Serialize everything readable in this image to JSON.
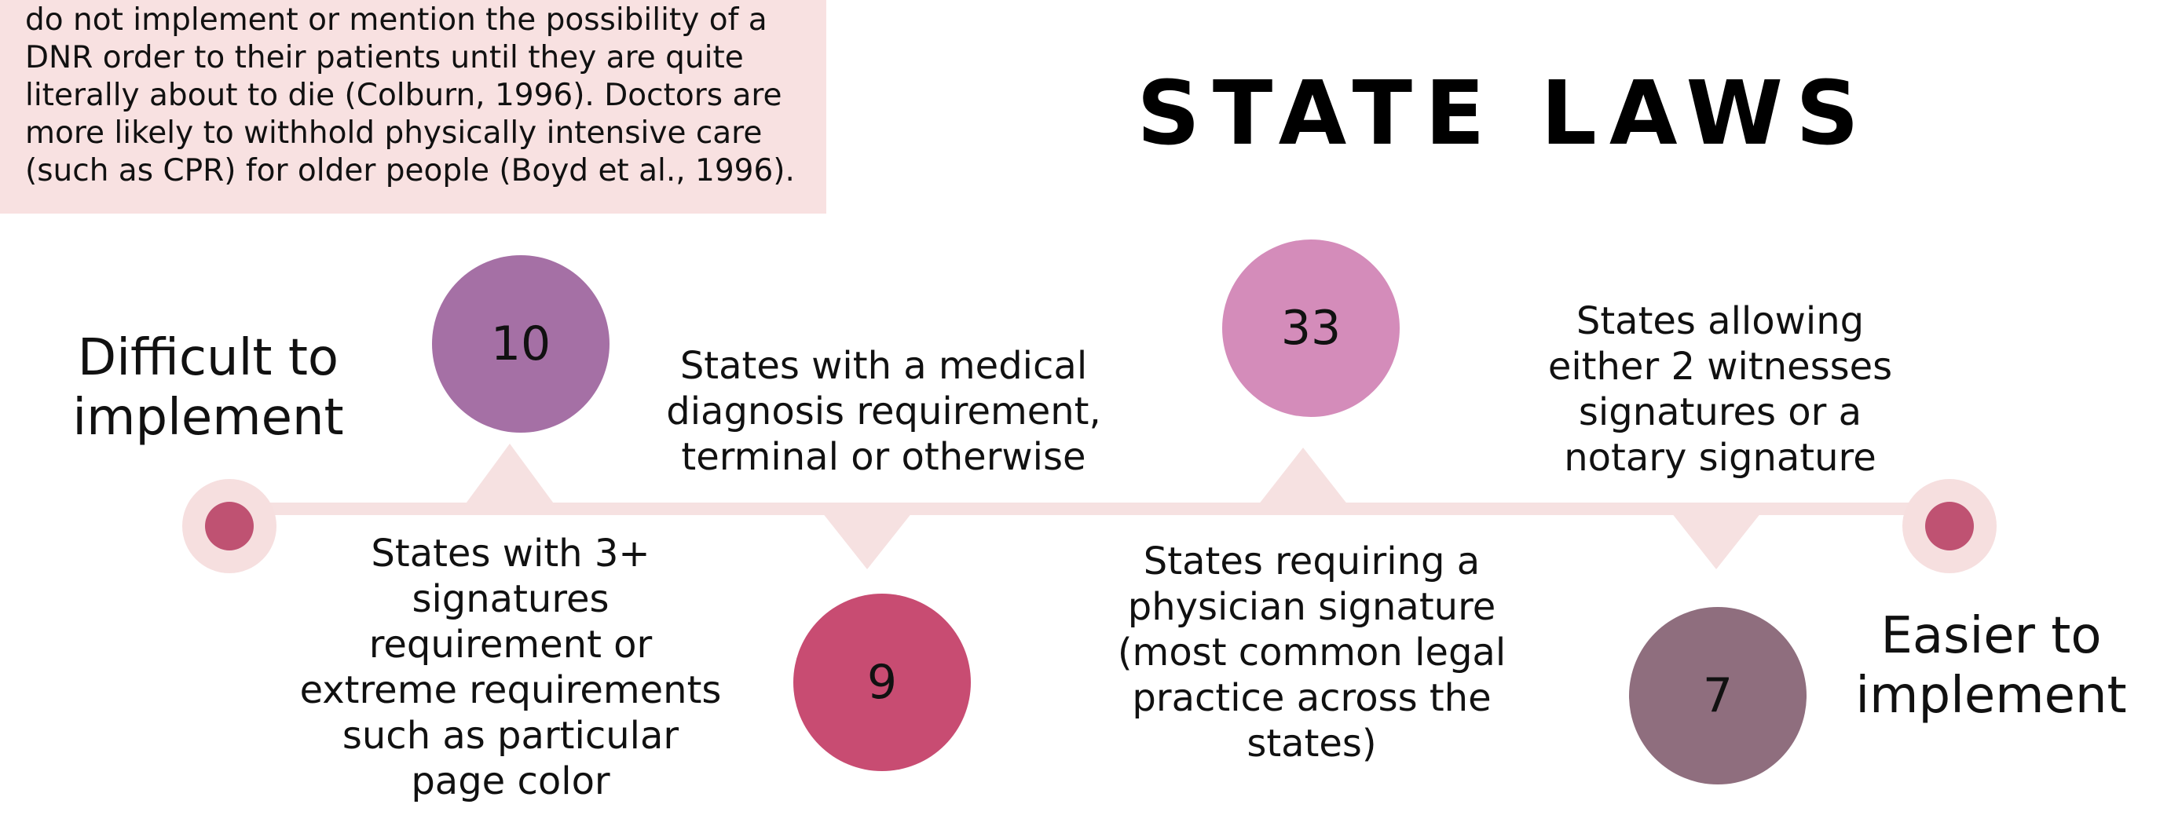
{
  "intro": {
    "text": "do not implement or mention the possibility of a\nDNR order to their patients until they are quite\nliterally about to die (Colburn, 1996). Doctors are\nmore likely to withhold physically intensive care\n(such as CPR) for older people (Boyd et al., 1996)."
  },
  "title": "STATE LAWS",
  "timeline": {
    "start_label": "Difficult to\nimplement",
    "end_label": "Easier to\nimplement",
    "items": [
      {
        "count": "10",
        "description": "States with 3+\nsignatures\nrequirement or\nextreme requirements\nsuch as particular\npage color",
        "color": "#a570a5"
      },
      {
        "count": "9",
        "description": "States with a medical\ndiagnosis requirement,\nterminal or otherwise",
        "color": "#c84c72"
      },
      {
        "count": "33",
        "description": "States requiring a\nphysician signature\n(most common legal\npractice across the\nstates)",
        "color": "#d48cba"
      },
      {
        "count": "7",
        "description": "States allowing\neither 2 witnesses\nsignatures or a\nnotary signature",
        "color": "#8f6e7e"
      }
    ],
    "colors": {
      "line": "#f6e1e1",
      "endpoint_outer": "#f6dfdf",
      "endpoint_inner": "#bf5272"
    }
  }
}
